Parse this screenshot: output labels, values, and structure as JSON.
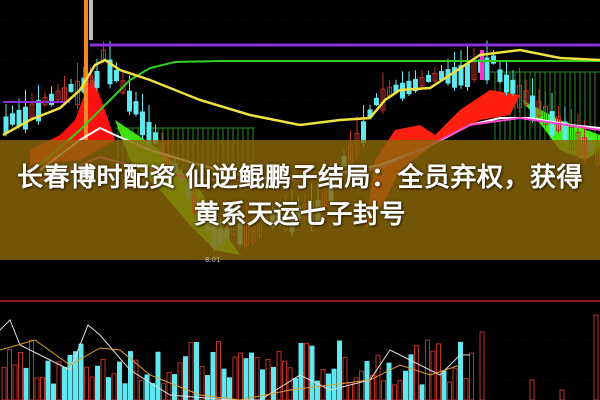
{
  "headline": {
    "line1": "长春博时配资 仙逆鲲鹏子结局：全员弃权，获得",
    "line2": "黄系天运七子封号"
  },
  "chart": {
    "price_marker": "8.01"
  },
  "colors": {
    "background": "#000000",
    "overlay": "#8c6808",
    "rise": "#c0302a",
    "fall": "#5fe8f0",
    "ma_yellow": "#f0e040",
    "ma_green": "#30d020",
    "ma_purple": "#8a30e0",
    "band_red": "#ff1010",
    "band_green": "#40f010"
  }
}
